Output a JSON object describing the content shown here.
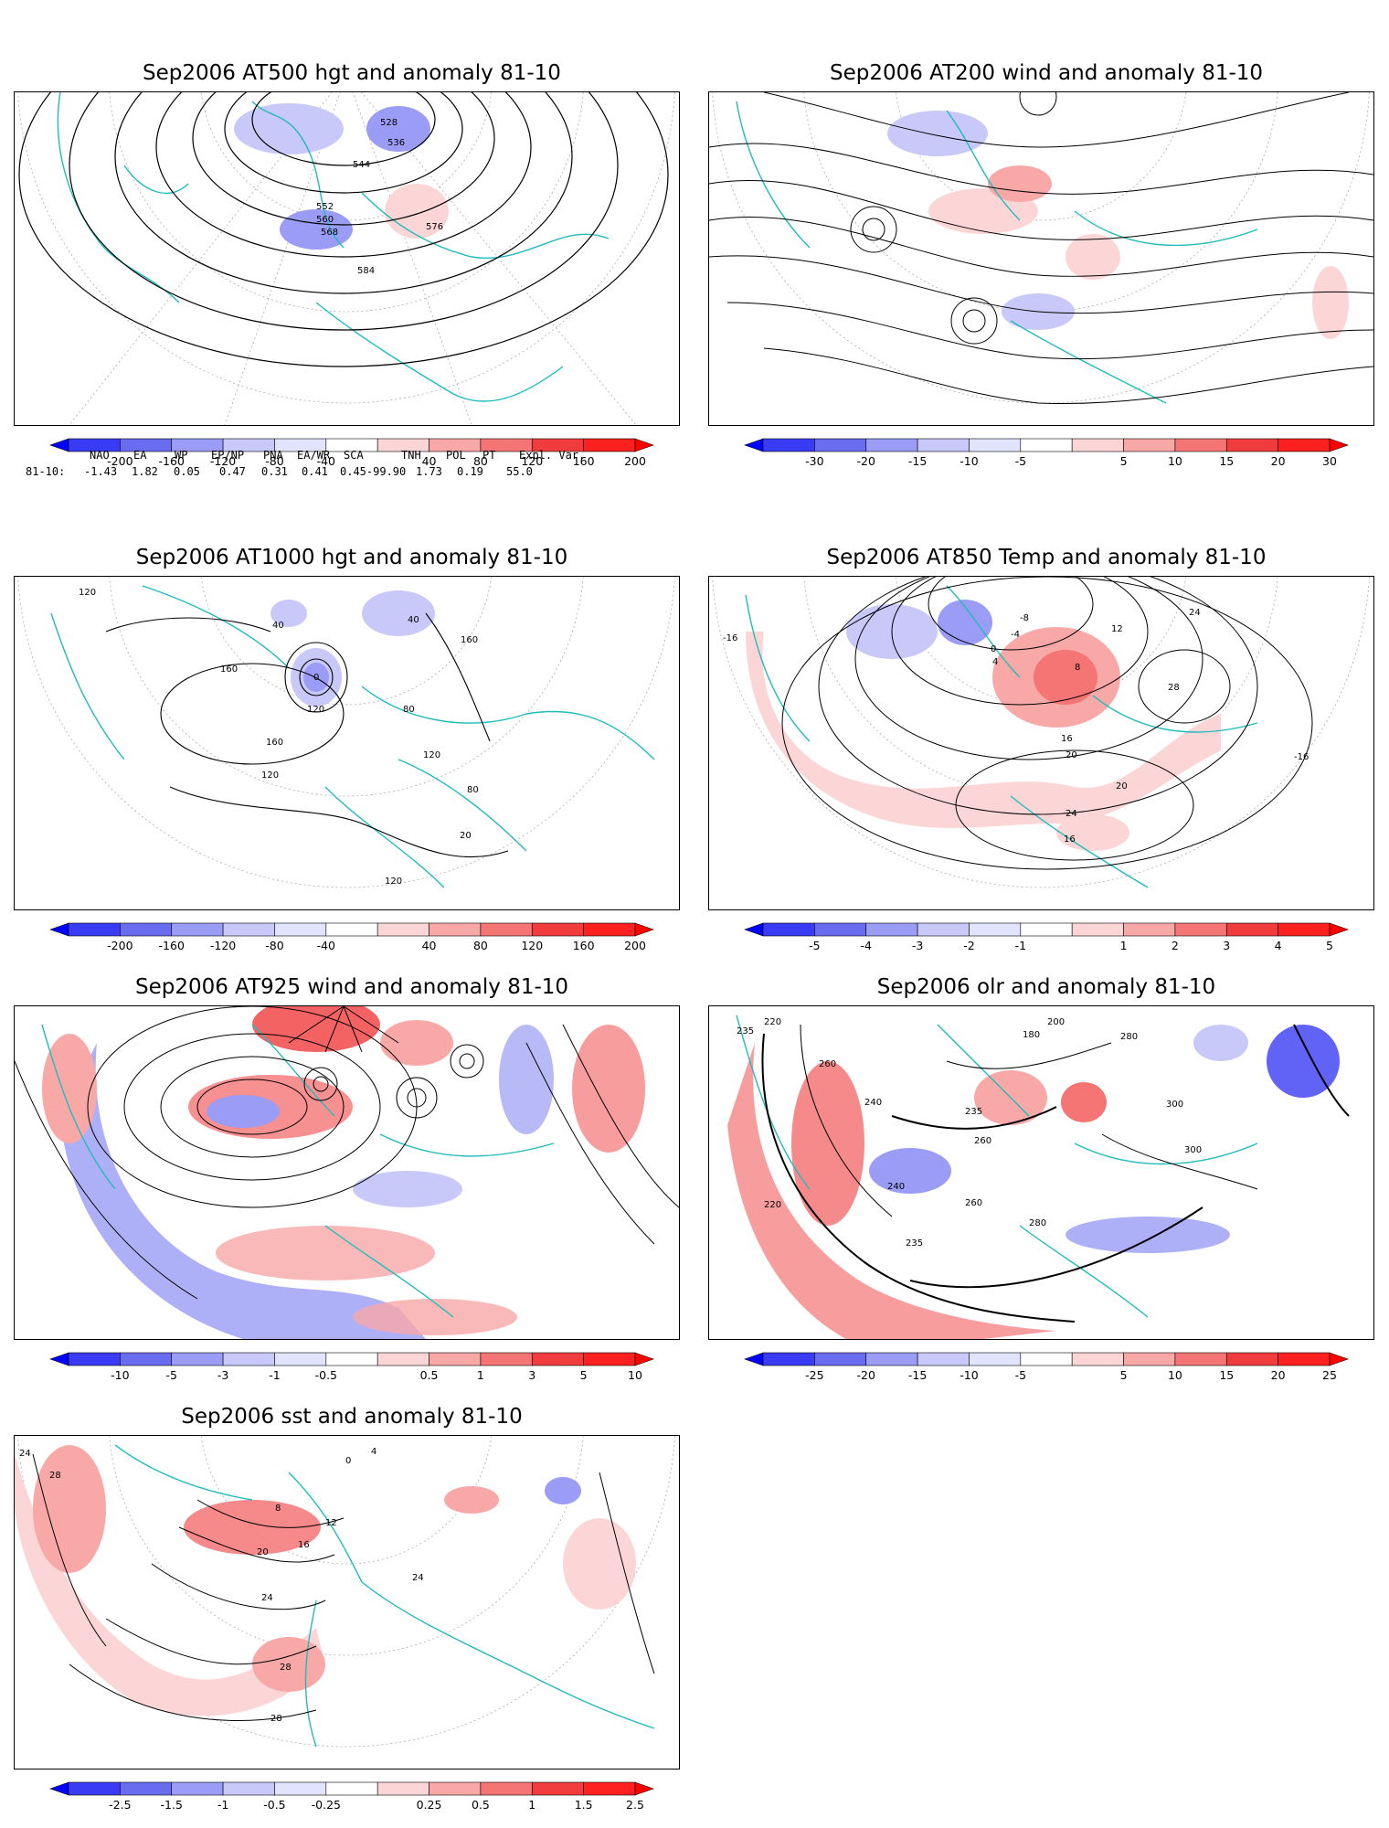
{
  "panels": [
    {
      "id": "p1",
      "title": "Sep2006 AT500 hgt and anomaly 81-10",
      "contour_labels": [
        "528",
        "536",
        "544",
        "552",
        "560",
        "568",
        "576",
        "584"
      ],
      "colorbar": [
        "-200",
        "-160",
        "-120",
        "-80",
        "-40",
        "40",
        "80",
        "120",
        "160",
        "200"
      ]
    },
    {
      "id": "p2",
      "title": "Sep2006 AT200 wind and anomaly 81-10",
      "contour_labels": [],
      "colorbar": [
        "-30",
        "-20",
        "-15",
        "-10",
        "-5",
        "5",
        "10",
        "15",
        "20",
        "30"
      ]
    },
    {
      "id": "p3",
      "title": "Sep2006 AT1000 hgt and anomaly 81-10",
      "contour_labels": [
        "120",
        "40",
        "0",
        "160",
        "120",
        "160",
        "120",
        "80",
        "80",
        "40",
        "120",
        "20",
        "120",
        "160"
      ],
      "colorbar": [
        "-200",
        "-160",
        "-120",
        "-80",
        "-40",
        "40",
        "80",
        "120",
        "160",
        "200"
      ]
    },
    {
      "id": "p4",
      "title": "Sep2006 AT850 Temp and anomaly 81-10",
      "contour_labels": [
        "-16",
        "-8",
        "-4",
        "0",
        "4",
        "8",
        "12",
        "16",
        "20",
        "24",
        "28",
        "20",
        "24",
        "16",
        "-16"
      ],
      "colorbar": [
        "-5",
        "-4",
        "-3",
        "-2",
        "-1",
        "1",
        "2",
        "3",
        "4",
        "5"
      ]
    },
    {
      "id": "p5",
      "title": "Sep2006 AT925 wind and anomaly 81-10",
      "contour_labels": [],
      "colorbar": [
        "-10",
        "-5",
        "-3",
        "-1",
        "-0.5",
        "0.5",
        "1",
        "3",
        "5",
        "10"
      ]
    },
    {
      "id": "p6",
      "title": "Sep2006 olr and anomaly 81-10",
      "contour_labels": [
        "220",
        "235",
        "260",
        "200",
        "240",
        "180",
        "280",
        "300",
        "235",
        "260",
        "220",
        "240",
        "260",
        "280",
        "235",
        "300"
      ],
      "colorbar": [
        "-25",
        "-20",
        "-15",
        "-10",
        "-5",
        "5",
        "10",
        "15",
        "20",
        "25"
      ]
    },
    {
      "id": "p7",
      "title": "Sep2006 sst and anomaly 81-10",
      "contour_labels": [
        "24",
        "28",
        "0",
        "4",
        "8",
        "12",
        "16",
        "20",
        "24",
        "28",
        "28",
        "24"
      ],
      "colorbar": [
        "-2.5",
        "-1.5",
        "-1",
        "-0.5",
        "-0.25",
        "0.25",
        "0.5",
        "1",
        "1.5",
        "2.5"
      ]
    }
  ],
  "colorbar_colors": [
    "#0000ff",
    "#3a3cf5",
    "#6a6cf0",
    "#9a9cf5",
    "#c8c9f8",
    "#e2e3fc",
    "#ffffff",
    "#fcd6d6",
    "#f9a8a8",
    "#f57474",
    "#f03c3c",
    "#ff0000"
  ],
  "teleconnections": {
    "headers": [
      "NAO",
      "EA",
      "WP",
      "EP/NP",
      "PNA",
      "EA/WR",
      "SCA",
      "TNH",
      "POL",
      "PT",
      "Expl. Var."
    ],
    "row_label": "81-10:",
    "values": [
      "-1.43",
      "1.82",
      "0.05",
      "0.47",
      "0.31",
      "0.41",
      "0.45-99.90",
      "1.73",
      "0.19",
      "55.0"
    ]
  }
}
